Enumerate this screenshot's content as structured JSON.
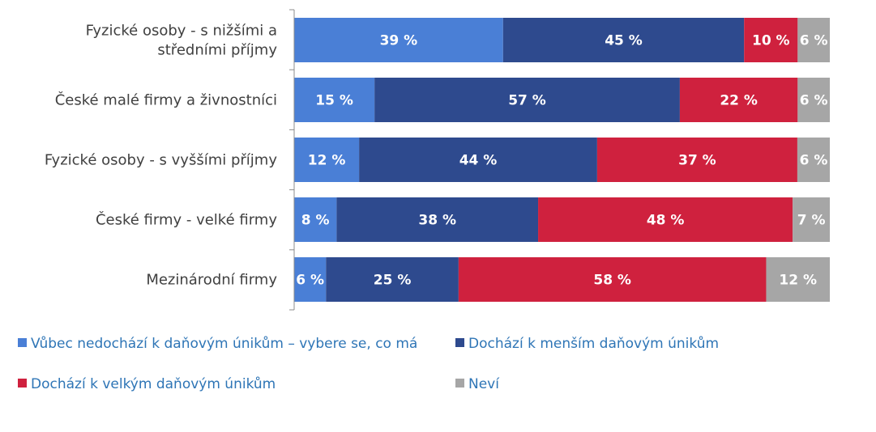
{
  "chart_data": {
    "type": "bar",
    "orientation": "horizontal",
    "stacked": true,
    "categories": [
      "Fyzické osoby - s nižšími a středními příjmy",
      "České malé firmy a živnostníci",
      "Fyzické osoby - s vyššími příjmy",
      "České firmy - velké firmy",
      "Mezinárodní firmy"
    ],
    "category_lines": [
      [
        "Fyzické osoby - s nižšími a",
        "středními příjmy"
      ],
      [
        "České malé firmy a živnostníci"
      ],
      [
        "Fyzické osoby - s vyššími příjmy"
      ],
      [
        "České firmy - velké firmy"
      ],
      [
        "Mezinárodní firmy"
      ]
    ],
    "series": [
      {
        "name": "Vůbec nedochází k daňovým únikům – vybere se, co má",
        "color": "#4a7fd6",
        "values": [
          39,
          15,
          12,
          8,
          6
        ]
      },
      {
        "name": "Dochází k menším daňovým únikům",
        "color": "#2e4a8e",
        "values": [
          45,
          57,
          44,
          38,
          25
        ]
      },
      {
        "name": "Dochází k velkým daňovým únikům",
        "color": "#cf213e",
        "values": [
          10,
          22,
          37,
          48,
          58
        ]
      },
      {
        "name": "Neví",
        "color": "#a6a6a6",
        "values": [
          6,
          6,
          6,
          7,
          12
        ]
      }
    ],
    "value_suffix": " %",
    "legend_position": "bottom",
    "grid": false
  }
}
